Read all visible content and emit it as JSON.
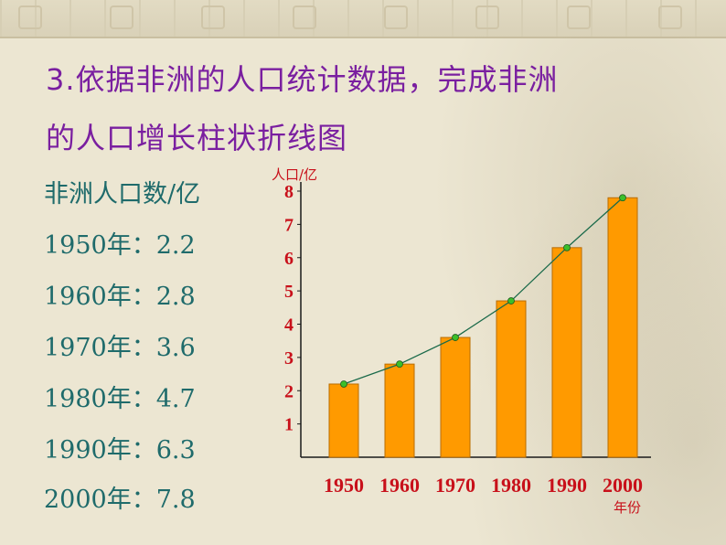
{
  "heading": {
    "line1": "3.依据非洲的人口统计数据，完成非洲",
    "line2": "的人口增长柱状折线图"
  },
  "data_list": {
    "header": "非洲人口数/亿",
    "rows": [
      "1950年：2.2",
      "1960年：2.8",
      "1970年：3.6",
      "1980年：4.7",
      "1990年：6.3",
      "2000年：7.8"
    ]
  },
  "colors": {
    "bar": "#ff9a00",
    "bar_stroke": "#b86c00",
    "line": "#1a6a4a",
    "point": "#3cbf2a",
    "tick_text": "#c8101a",
    "axis": "#1a1a1a"
  },
  "chart_data": {
    "type": "bar",
    "categories": [
      "1950",
      "1960",
      "1970",
      "1980",
      "1990",
      "2000"
    ],
    "values": [
      2.2,
      2.8,
      3.6,
      4.7,
      6.3,
      7.8
    ],
    "overlay_line": true,
    "title": "",
    "xlabel": "年份",
    "ylabel": "人口/亿",
    "yticks": [
      "1",
      "2",
      "3",
      "4",
      "5",
      "6",
      "7",
      "8"
    ],
    "ylim": [
      0,
      8
    ],
    "grid": false
  }
}
